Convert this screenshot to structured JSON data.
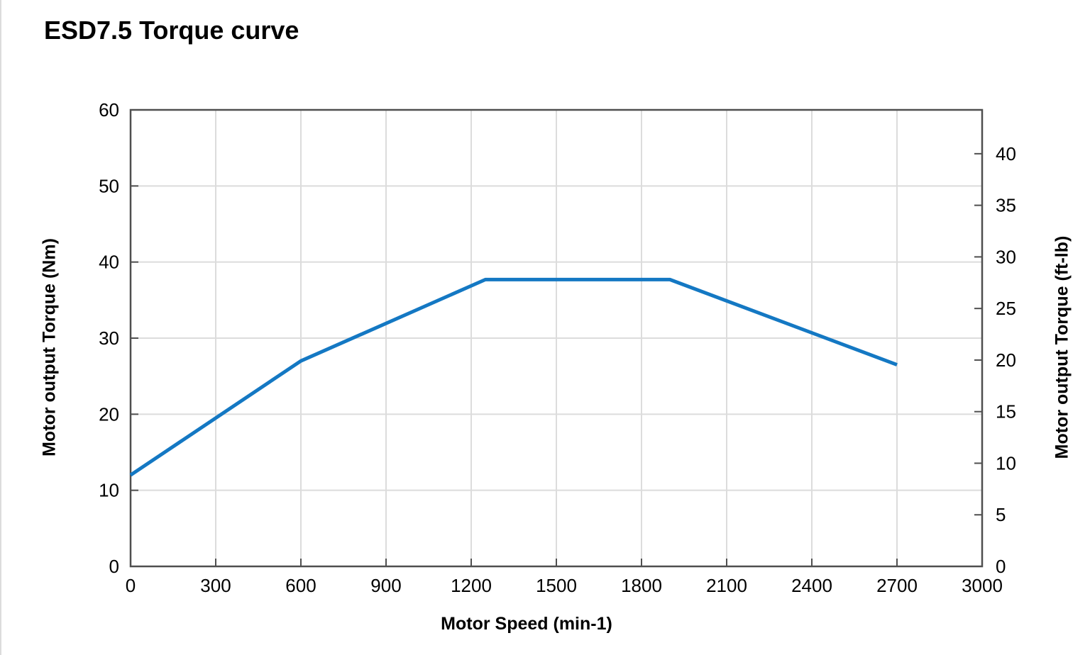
{
  "window": {
    "background": "#ffffff",
    "edge_color": "#dcdcdc"
  },
  "chart_data": {
    "type": "line",
    "title": "ESD7.5 Torque curve",
    "xlabel": "Motor Speed (min-1)",
    "ylabel_left": "Motor output Torque (Nm)",
    "ylabel_right": "Motor output Torque (ft-lb)",
    "xlim": [
      0,
      3000
    ],
    "ylim_left": [
      0,
      60
    ],
    "ylim_right": [
      0,
      44.25
    ],
    "x_ticks": [
      0,
      300,
      600,
      900,
      1200,
      1500,
      1800,
      2100,
      2400,
      2700,
      3000
    ],
    "y_ticks_left": [
      0,
      10,
      20,
      30,
      40,
      50,
      60
    ],
    "y_ticks_right": [
      0,
      5,
      10,
      15,
      20,
      25,
      30,
      35,
      40
    ],
    "grid": true,
    "legend": "none",
    "series": [
      {
        "name": "Motor output Torque",
        "color": "#1478c3",
        "x": [
          0,
          600,
          1250,
          1900,
          2700
        ],
        "y": [
          12,
          27,
          37.7,
          37.7,
          26.5
        ]
      }
    ],
    "colors": {
      "axis": "#4f4f4f",
      "grid": "#dcdcdc",
      "text": "#000000"
    }
  }
}
